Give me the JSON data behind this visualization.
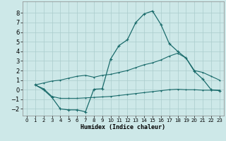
{
  "xlabel": "Humidex (Indice chaleur)",
  "xlim": [
    -0.5,
    23.5
  ],
  "ylim": [
    -2.7,
    9.2
  ],
  "yticks": [
    -2,
    -1,
    0,
    1,
    2,
    3,
    4,
    5,
    6,
    7,
    8
  ],
  "xticks": [
    0,
    1,
    2,
    3,
    4,
    5,
    6,
    7,
    8,
    9,
    10,
    11,
    12,
    13,
    14,
    15,
    16,
    17,
    18,
    19,
    20,
    21,
    22,
    23
  ],
  "bg_color": "#cde8e8",
  "grid_color": "#aacccc",
  "line_color": "#1a6b6b",
  "line1_x": [
    1,
    2,
    3,
    4,
    5,
    6,
    7,
    8,
    9,
    10,
    11,
    12,
    13,
    14,
    15,
    16,
    17,
    18,
    19,
    20,
    21,
    22,
    23
  ],
  "line1_y": [
    0.5,
    0.0,
    -0.8,
    -2.0,
    -2.1,
    -2.1,
    -2.3,
    0.05,
    0.1,
    3.2,
    4.6,
    5.2,
    7.0,
    7.9,
    8.2,
    6.8,
    4.8,
    4.0,
    3.3,
    1.9,
    1.1,
    0.0,
    -0.1
  ],
  "line2_x": [
    1,
    2,
    3,
    4,
    5,
    6,
    7,
    8,
    9,
    10,
    11,
    12,
    13,
    14,
    15,
    16,
    17,
    18,
    19,
    20,
    21,
    22,
    23
  ],
  "line2_y": [
    0.5,
    0.7,
    0.9,
    1.0,
    1.2,
    1.4,
    1.5,
    1.3,
    1.5,
    1.6,
    1.8,
    2.0,
    2.3,
    2.6,
    2.8,
    3.1,
    3.5,
    3.8,
    3.3,
    2.0,
    1.8,
    1.4,
    1.0
  ],
  "line3_x": [
    1,
    2,
    3,
    4,
    5,
    6,
    7,
    8,
    9,
    10,
    11,
    12,
    13,
    14,
    15,
    16,
    17,
    18,
    19,
    20,
    21,
    22,
    23
  ],
  "line3_y": [
    0.5,
    0.1,
    -0.7,
    -0.9,
    -0.9,
    -0.9,
    -0.85,
    -0.8,
    -0.75,
    -0.7,
    -0.6,
    -0.5,
    -0.4,
    -0.3,
    -0.2,
    -0.1,
    0.0,
    0.05,
    0.0,
    0.0,
    -0.05,
    -0.05,
    -0.05
  ]
}
